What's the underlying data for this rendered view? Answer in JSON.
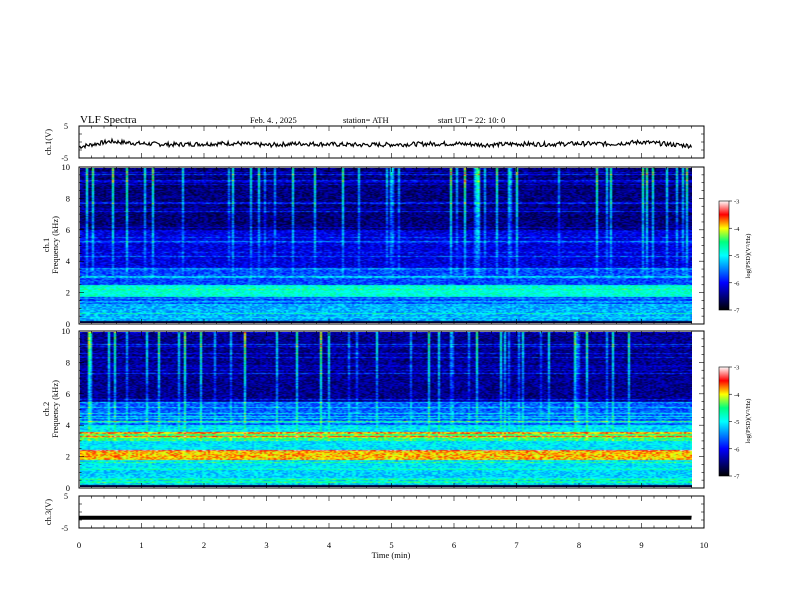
{
  "header": {
    "title": "VLF  Spectra",
    "date": "Feb. 4.  , 2025",
    "station": "station= ATH",
    "start": "start  UT  =    22: 10: 0"
  },
  "panels": {
    "ch1_label": "ch.1(V)",
    "ch3_label": "ch.3(V)",
    "spec1_label_top": "ch.1",
    "spec1_label_bottom": "Frequency (kHz)",
    "spec2_label_top": "ch.2",
    "spec2_label_bottom": "Frequency (kHz)",
    "colorbar_label": "log(PSD)(V²/Hz)",
    "x_label": "Time  (min)"
  },
  "colors": {
    "ink": "#000000",
    "colormap": [
      "#000000",
      "#00007f",
      "#0000ff",
      "#0080ff",
      "#00ffff",
      "#00ff7f",
      "#ffff00",
      "#ff0000",
      "#ffffff"
    ]
  },
  "chart_data": [
    {
      "type": "line",
      "name": "ch.1 waveform",
      "ylabel": "ch.1(V)",
      "yticks": [
        "5",
        "-5"
      ],
      "ylim": [
        -5,
        5
      ],
      "xlim": [
        0,
        10
      ],
      "x": [
        0,
        0.5,
        1,
        1.5,
        2,
        2.5,
        3,
        3.5,
        4,
        4.5,
        5,
        5.5,
        6,
        6.5,
        7,
        7.5,
        8,
        8.5,
        9,
        9.5,
        9.8
      ],
      "values": [
        -1.5,
        0.2,
        -0.5,
        -0.8,
        -0.6,
        -0.4,
        -1.0,
        -0.5,
        -0.7,
        -0.9,
        -0.8,
        -0.6,
        -0.5,
        -0.9,
        -0.6,
        -0.7,
        -0.5,
        -0.6,
        0.0,
        -0.8,
        -1.2
      ]
    },
    {
      "type": "heatmap",
      "name": "ch.1 spectrogram",
      "ylabel": "Frequency (kHz)",
      "yticks": [
        "0",
        "2",
        "4",
        "6",
        "8",
        "10"
      ],
      "ylim": [
        0,
        10
      ],
      "xlim": [
        0,
        9.8
      ],
      "colorbar_ticks": [
        "-3",
        "-4",
        "-5",
        "-6",
        "-7"
      ],
      "color_range": [
        -7,
        -3
      ]
    },
    {
      "type": "heatmap",
      "name": "ch.2 spectrogram",
      "ylabel": "Frequency (kHz)",
      "yticks": [
        "0",
        "2",
        "4",
        "6",
        "8",
        "10"
      ],
      "ylim": [
        0,
        10
      ],
      "xlim": [
        0,
        9.8
      ],
      "colorbar_ticks": [
        "-3",
        "-4",
        "-5",
        "-6",
        "-7"
      ],
      "color_range": [
        -7,
        -3
      ]
    },
    {
      "type": "line",
      "name": "ch.3 waveform",
      "ylabel": "ch.3(V)",
      "yticks": [
        "5",
        "-5"
      ],
      "ylim": [
        -5,
        5
      ],
      "xlim": [
        0,
        10
      ],
      "x": [
        0,
        9.8
      ],
      "values": [
        -1.8,
        -1.8
      ]
    }
  ],
  "x_axis": {
    "ticks": [
      "0",
      "1",
      "2",
      "3",
      "4",
      "5",
      "6",
      "7",
      "8",
      "9",
      "10"
    ],
    "range": [
      0,
      10
    ]
  }
}
